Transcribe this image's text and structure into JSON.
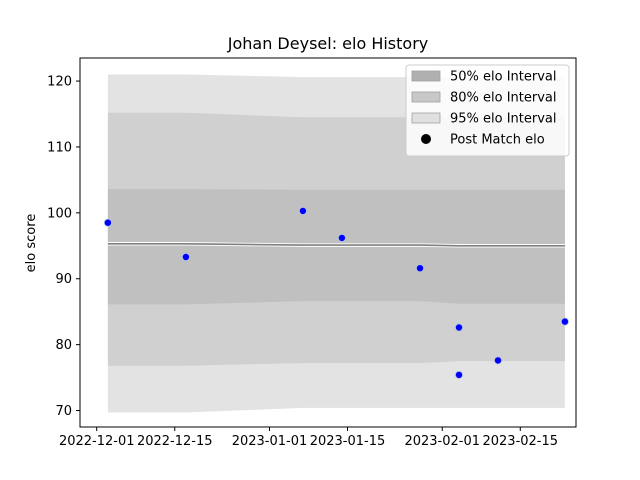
{
  "chart_data": {
    "type": "line",
    "title": "Johan Deysel: elo History",
    "xlabel": "",
    "ylabel": "elo score",
    "xlim": [
      "2022-11-28",
      "2023-02-25"
    ],
    "ylim": [
      67.5,
      123.5
    ],
    "x_ticks": [
      "2022-12-01",
      "2022-12-15",
      "2023-01-01",
      "2023-01-15",
      "2023-02-01",
      "2023-02-15"
    ],
    "y_ticks": [
      70,
      80,
      90,
      100,
      110,
      120
    ],
    "legend_position": "top-right",
    "bands": [
      {
        "name": "95% elo Interval",
        "color": "#e3e3e3",
        "x": [
          "2022-12-03",
          "2022-12-17",
          "2023-01-07",
          "2023-01-14",
          "2023-01-28",
          "2023-02-04",
          "2023-02-11",
          "2023-02-23"
        ],
        "lower": [
          69.7,
          69.7,
          70.4,
          70.4,
          70.4,
          70.4,
          70.4,
          70.4
        ],
        "upper": [
          121.0,
          121.0,
          120.6,
          120.6,
          120.6,
          120.6,
          120.6,
          120.6
        ]
      },
      {
        "name": "80% elo Interval",
        "color": "#d0d0d0",
        "x": [
          "2022-12-03",
          "2022-12-17",
          "2023-01-07",
          "2023-01-14",
          "2023-01-28",
          "2023-02-04",
          "2023-02-11",
          "2023-02-23"
        ],
        "lower": [
          76.8,
          76.8,
          77.2,
          77.2,
          77.2,
          77.5,
          77.5,
          77.5
        ],
        "upper": [
          115.2,
          115.2,
          114.5,
          114.5,
          114.5,
          114.5,
          114.5,
          114.5
        ]
      },
      {
        "name": "50% elo Interval",
        "color": "#c0c0c0",
        "x": [
          "2022-12-03",
          "2022-12-17",
          "2023-01-07",
          "2023-01-14",
          "2023-01-28",
          "2023-02-04",
          "2023-02-11",
          "2023-02-23"
        ],
        "lower": [
          86.1,
          86.1,
          86.6,
          86.6,
          86.6,
          86.2,
          86.2,
          86.2
        ],
        "upper": [
          103.6,
          103.6,
          103.5,
          103.5,
          103.5,
          103.5,
          103.5,
          103.5
        ]
      }
    ],
    "mean_line": {
      "color": "#808080",
      "x": [
        "2022-12-03",
        "2022-12-17",
        "2023-01-07",
        "2023-01-14",
        "2023-01-28",
        "2023-02-04",
        "2023-02-11",
        "2023-02-23"
      ],
      "y": [
        95.3,
        95.3,
        95.1,
        95.1,
        95.1,
        95.0,
        95.0,
        95.0
      ]
    },
    "series": [
      {
        "name": "Post Match elo",
        "color": "#0000ff",
        "x": [
          "2022-12-03",
          "2022-12-17",
          "2023-01-07",
          "2023-01-14",
          "2023-01-28",
          "2023-02-04",
          "2023-02-04",
          "2023-02-11",
          "2023-02-23"
        ],
        "y": [
          98.5,
          93.3,
          100.3,
          96.2,
          91.6,
          82.6,
          75.4,
          77.6,
          83.5
        ]
      }
    ],
    "legend": [
      {
        "label": "50% elo Interval",
        "kind": "patch",
        "color": "#b0b0b0"
      },
      {
        "label": "80% elo Interval",
        "kind": "patch",
        "color": "#c8c8c8"
      },
      {
        "label": "95% elo Interval",
        "kind": "patch",
        "color": "#e0e0e0"
      },
      {
        "label": "Post Match elo",
        "kind": "dot",
        "color": "#000000"
      }
    ]
  }
}
